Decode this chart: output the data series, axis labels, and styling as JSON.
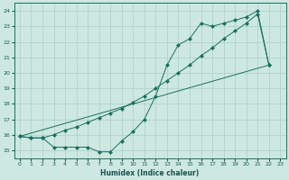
{
  "xlabel": "Humidex (Indice chaleur)",
  "bg_color": "#cce8e0",
  "grid_color": "#aacfc8",
  "line_color": "#1a7060",
  "xlim": [
    -0.5,
    23.5
  ],
  "ylim": [
    14.5,
    24.5
  ],
  "xticks": [
    0,
    1,
    2,
    3,
    4,
    5,
    6,
    7,
    8,
    9,
    10,
    11,
    12,
    13,
    14,
    15,
    16,
    17,
    18,
    19,
    20,
    21,
    22,
    23
  ],
  "yticks": [
    15,
    16,
    17,
    18,
    19,
    20,
    21,
    22,
    23,
    24
  ],
  "line1_x": [
    0,
    1,
    2,
    3,
    4,
    5,
    6,
    7,
    8,
    9,
    10,
    11,
    12,
    13,
    14,
    15,
    16,
    17,
    18,
    19,
    20,
    21,
    22
  ],
  "line1_y": [
    15.9,
    15.8,
    15.8,
    15.2,
    15.2,
    15.2,
    15.2,
    14.9,
    14.9,
    15.6,
    16.2,
    17.0,
    18.5,
    20.5,
    21.8,
    22.2,
    23.2,
    23.0,
    23.2,
    23.4,
    23.6,
    24.0,
    20.5
  ],
  "line2_x": [
    0,
    1,
    2,
    3,
    4,
    5,
    6,
    7,
    8,
    9,
    10,
    11,
    12,
    13,
    14,
    15,
    16,
    17,
    18,
    19,
    20,
    21,
    22
  ],
  "line2_y": [
    15.9,
    15.8,
    15.8,
    16.0,
    16.3,
    16.5,
    16.8,
    17.1,
    17.4,
    17.7,
    18.1,
    18.5,
    19.0,
    19.5,
    20.0,
    20.5,
    21.1,
    21.6,
    22.2,
    22.7,
    23.2,
    23.8,
    20.5
  ],
  "line3_x": [
    0,
    22
  ],
  "line3_y": [
    15.9,
    20.5
  ]
}
